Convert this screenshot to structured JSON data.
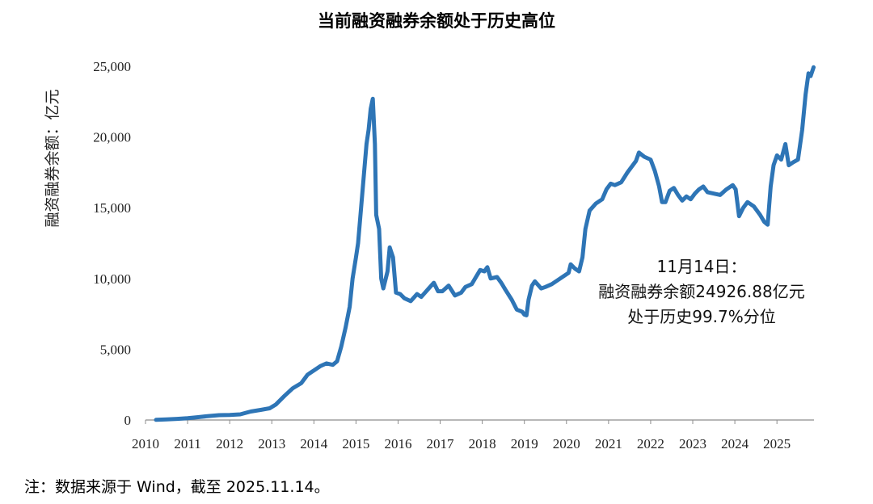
{
  "chart_data": {
    "type": "line",
    "title": "当前融资融券余额处于历史高位",
    "ylabel": "融资融券余额：亿元",
    "xlabel": "",
    "ylim": [
      0,
      25000
    ],
    "yticks": [
      0,
      5000,
      10000,
      15000,
      20000,
      25000
    ],
    "ytick_labels": [
      "0",
      "5,000",
      "10,000",
      "15,000",
      "20,000",
      "25,000"
    ],
    "xlim": [
      2010.0,
      2025.88
    ],
    "xticks": [
      2010,
      2011,
      2012,
      2013,
      2014,
      2015,
      2016,
      2017,
      2018,
      2019,
      2020,
      2021,
      2022,
      2023,
      2024,
      2025
    ],
    "xtick_labels": [
      "2010",
      "2011",
      "2012",
      "2013",
      "2014",
      "2015",
      "2016",
      "2017",
      "2018",
      "2019",
      "2020",
      "2021",
      "2022",
      "2023",
      "2024",
      "2025"
    ],
    "color": "#2e75b6",
    "grid": false,
    "series": [
      {
        "name": "融资融券余额",
        "points": [
          [
            2010.25,
            10
          ],
          [
            2010.5,
            40
          ],
          [
            2010.75,
            80
          ],
          [
            2011.0,
            130
          ],
          [
            2011.25,
            200
          ],
          [
            2011.5,
            280
          ],
          [
            2011.75,
            340
          ],
          [
            2012.0,
            360
          ],
          [
            2012.25,
            400
          ],
          [
            2012.5,
            600
          ],
          [
            2012.75,
            720
          ],
          [
            2012.95,
            830
          ],
          [
            2013.1,
            1100
          ],
          [
            2013.3,
            1700
          ],
          [
            2013.5,
            2250
          ],
          [
            2013.7,
            2600
          ],
          [
            2013.85,
            3200
          ],
          [
            2014.0,
            3500
          ],
          [
            2014.15,
            3800
          ],
          [
            2014.3,
            4000
          ],
          [
            2014.45,
            3900
          ],
          [
            2014.55,
            4150
          ],
          [
            2014.65,
            5200
          ],
          [
            2014.75,
            6500
          ],
          [
            2014.85,
            8000
          ],
          [
            2014.92,
            10000
          ],
          [
            2015.0,
            11500
          ],
          [
            2015.05,
            12500
          ],
          [
            2015.15,
            16000
          ],
          [
            2015.25,
            19500
          ],
          [
            2015.3,
            20500
          ],
          [
            2015.35,
            22000
          ],
          [
            2015.4,
            22700
          ],
          [
            2015.45,
            19500
          ],
          [
            2015.48,
            14500
          ],
          [
            2015.55,
            13500
          ],
          [
            2015.6,
            10000
          ],
          [
            2015.65,
            9300
          ],
          [
            2015.75,
            10500
          ],
          [
            2015.8,
            12200
          ],
          [
            2015.88,
            11500
          ],
          [
            2015.95,
            9000
          ],
          [
            2016.05,
            8900
          ],
          [
            2016.15,
            8600
          ],
          [
            2016.3,
            8400
          ],
          [
            2016.45,
            8900
          ],
          [
            2016.55,
            8700
          ],
          [
            2016.7,
            9200
          ],
          [
            2016.85,
            9700
          ],
          [
            2016.95,
            9100
          ],
          [
            2017.05,
            9100
          ],
          [
            2017.2,
            9500
          ],
          [
            2017.35,
            8800
          ],
          [
            2017.5,
            9000
          ],
          [
            2017.6,
            9400
          ],
          [
            2017.75,
            9600
          ],
          [
            2017.85,
            10100
          ],
          [
            2017.95,
            10600
          ],
          [
            2018.05,
            10500
          ],
          [
            2018.12,
            10800
          ],
          [
            2018.2,
            10000
          ],
          [
            2018.35,
            10100
          ],
          [
            2018.45,
            9700
          ],
          [
            2018.55,
            9200
          ],
          [
            2018.7,
            8500
          ],
          [
            2018.82,
            7800
          ],
          [
            2018.95,
            7650
          ],
          [
            2019.0,
            7450
          ],
          [
            2019.05,
            7400
          ],
          [
            2019.1,
            8500
          ],
          [
            2019.18,
            9500
          ],
          [
            2019.25,
            9800
          ],
          [
            2019.4,
            9300
          ],
          [
            2019.5,
            9400
          ],
          [
            2019.65,
            9600
          ],
          [
            2019.8,
            9900
          ],
          [
            2019.95,
            10200
          ],
          [
            2020.05,
            10400
          ],
          [
            2020.1,
            11000
          ],
          [
            2020.2,
            10700
          ],
          [
            2020.3,
            10500
          ],
          [
            2020.38,
            11500
          ],
          [
            2020.45,
            13500
          ],
          [
            2020.55,
            14800
          ],
          [
            2020.7,
            15300
          ],
          [
            2020.85,
            15600
          ],
          [
            2020.95,
            16300
          ],
          [
            2021.05,
            16700
          ],
          [
            2021.15,
            16600
          ],
          [
            2021.3,
            16800
          ],
          [
            2021.45,
            17500
          ],
          [
            2021.55,
            17900
          ],
          [
            2021.65,
            18300
          ],
          [
            2021.72,
            18900
          ],
          [
            2021.85,
            18600
          ],
          [
            2022.0,
            18400
          ],
          [
            2022.1,
            17600
          ],
          [
            2022.2,
            16500
          ],
          [
            2022.27,
            15400
          ],
          [
            2022.35,
            15400
          ],
          [
            2022.45,
            16200
          ],
          [
            2022.55,
            16400
          ],
          [
            2022.65,
            15900
          ],
          [
            2022.75,
            15500
          ],
          [
            2022.85,
            15800
          ],
          [
            2022.95,
            15600
          ],
          [
            2023.05,
            16000
          ],
          [
            2023.15,
            16300
          ],
          [
            2023.25,
            16500
          ],
          [
            2023.35,
            16100
          ],
          [
            2023.5,
            16000
          ],
          [
            2023.65,
            15900
          ],
          [
            2023.8,
            16300
          ],
          [
            2023.95,
            16600
          ],
          [
            2024.02,
            16300
          ],
          [
            2024.1,
            14400
          ],
          [
            2024.2,
            15000
          ],
          [
            2024.3,
            15400
          ],
          [
            2024.45,
            15100
          ],
          [
            2024.6,
            14500
          ],
          [
            2024.7,
            14000
          ],
          [
            2024.78,
            13800
          ],
          [
            2024.85,
            16500
          ],
          [
            2024.92,
            18000
          ],
          [
            2025.0,
            18700
          ],
          [
            2025.1,
            18400
          ],
          [
            2025.2,
            19500
          ],
          [
            2025.28,
            18000
          ],
          [
            2025.38,
            18200
          ],
          [
            2025.5,
            18400
          ],
          [
            2025.6,
            20500
          ],
          [
            2025.68,
            23000
          ],
          [
            2025.75,
            24500
          ],
          [
            2025.8,
            24300
          ],
          [
            2025.87,
            24927
          ]
        ]
      }
    ],
    "annotation": [
      "11月14日：",
      "融资融券余额24926.88亿元",
      "处于历史99.7%分位"
    ]
  },
  "footnote": "注：数据来源于 Wind，截至 2025.11.14。"
}
